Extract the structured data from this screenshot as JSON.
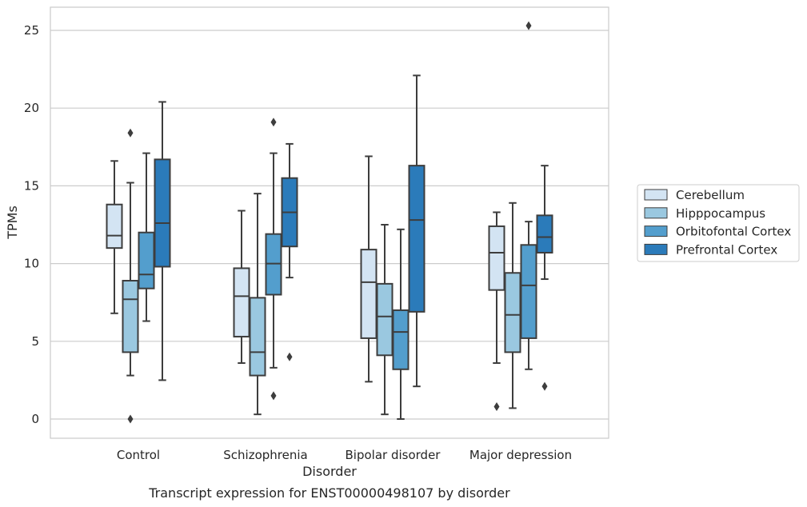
{
  "chart_data": {
    "type": "box",
    "caption": "Transcript expression for ENST00000498107 by disorder",
    "xlabel": "Disorder",
    "ylabel": "TPMs",
    "ylim": [
      -1.2,
      26.5
    ],
    "yticks": [
      0,
      5,
      10,
      15,
      20,
      25
    ],
    "grid": "horizontal",
    "legend_position": "right",
    "categories": [
      "Control",
      "Schizophrenia",
      "Bipolar disorder",
      "Major depression"
    ],
    "series": [
      {
        "name": "Cerebellum",
        "color": "#d3e4f3",
        "boxes": [
          {
            "whisker_low": 6.8,
            "q1": 11.0,
            "median": 11.8,
            "q3": 13.8,
            "whisker_high": 16.6,
            "outliers": []
          },
          {
            "whisker_low": 3.6,
            "q1": 5.3,
            "median": 7.9,
            "q3": 9.7,
            "whisker_high": 13.4,
            "outliers": []
          },
          {
            "whisker_low": 2.4,
            "q1": 5.2,
            "median": 8.8,
            "q3": 10.9,
            "whisker_high": 16.9,
            "outliers": []
          },
          {
            "whisker_low": 3.6,
            "q1": 8.3,
            "median": 10.7,
            "q3": 12.4,
            "whisker_high": 13.3,
            "outliers": [
              0.8
            ]
          }
        ]
      },
      {
        "name": "Hipppocampus",
        "color": "#9ac8e0",
        "boxes": [
          {
            "whisker_low": 2.8,
            "q1": 4.3,
            "median": 7.7,
            "q3": 8.9,
            "whisker_high": 15.2,
            "outliers": [
              18.4,
              0.0
            ]
          },
          {
            "whisker_low": 0.3,
            "q1": 2.8,
            "median": 4.3,
            "q3": 7.8,
            "whisker_high": 14.5,
            "outliers": []
          },
          {
            "whisker_low": 0.3,
            "q1": 4.1,
            "median": 6.6,
            "q3": 8.7,
            "whisker_high": 12.5,
            "outliers": []
          },
          {
            "whisker_low": 0.7,
            "q1": 4.3,
            "median": 6.7,
            "q3": 9.4,
            "whisker_high": 13.9,
            "outliers": []
          }
        ]
      },
      {
        "name": "Orbitofontal Cortex",
        "color": "#539ecd",
        "boxes": [
          {
            "whisker_low": 6.3,
            "q1": 8.4,
            "median": 9.3,
            "q3": 12.0,
            "whisker_high": 17.1,
            "outliers": []
          },
          {
            "whisker_low": 3.3,
            "q1": 8.0,
            "median": 10.0,
            "q3": 11.9,
            "whisker_high": 17.1,
            "outliers": [
              19.1,
              1.5
            ]
          },
          {
            "whisker_low": 0.0,
            "q1": 3.2,
            "median": 5.6,
            "q3": 7.0,
            "whisker_high": 12.2,
            "outliers": []
          },
          {
            "whisker_low": 3.2,
            "q1": 5.2,
            "median": 8.6,
            "q3": 11.2,
            "whisker_high": 12.7,
            "outliers": [
              25.3
            ]
          }
        ]
      },
      {
        "name": "Prefrontal Cortex",
        "color": "#2b7bba",
        "boxes": [
          {
            "whisker_low": 2.5,
            "q1": 9.8,
            "median": 12.6,
            "q3": 16.7,
            "whisker_high": 20.4,
            "outliers": []
          },
          {
            "whisker_low": 9.1,
            "q1": 11.1,
            "median": 13.3,
            "q3": 15.5,
            "whisker_high": 17.7,
            "outliers": [
              4.0
            ]
          },
          {
            "whisker_low": 2.1,
            "q1": 6.9,
            "median": 12.8,
            "q3": 16.3,
            "whisker_high": 22.1,
            "outliers": []
          },
          {
            "whisker_low": 9.0,
            "q1": 10.7,
            "median": 11.7,
            "q3": 13.1,
            "whisker_high": 16.3,
            "outliers": [
              2.1
            ]
          }
        ]
      }
    ]
  }
}
